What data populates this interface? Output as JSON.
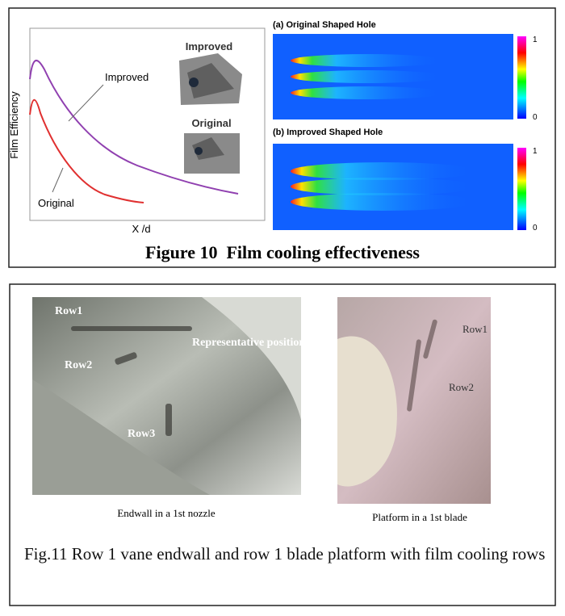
{
  "figure10": {
    "plot": {
      "y_label": "Film Efficiency",
      "x_label": "X /d",
      "curve_labels": [
        "Improved",
        "Original"
      ],
      "inset_labels": [
        "Improved",
        "Original"
      ]
    },
    "panels": [
      {
        "title": "(a) Original Shaped Hole",
        "scale": [
          "1",
          "0"
        ]
      },
      {
        "title": "(b) Improved Shaped Hole",
        "scale": [
          "1",
          "0"
        ]
      }
    ],
    "caption": "Figure 10  Film cooling effectiveness"
  },
  "figure11": {
    "photos": [
      {
        "labels": [
          "Row1",
          "Row2",
          "Representative position",
          "Row3"
        ],
        "caption": "Endwall in a 1st nozzle"
      },
      {
        "labels": [
          "Row1",
          "Row2"
        ],
        "caption": "Platform in a 1st blade"
      }
    ],
    "caption": "Fig.11 Row 1 vane endwall and row 1 blade platform with film cooling rows"
  }
}
